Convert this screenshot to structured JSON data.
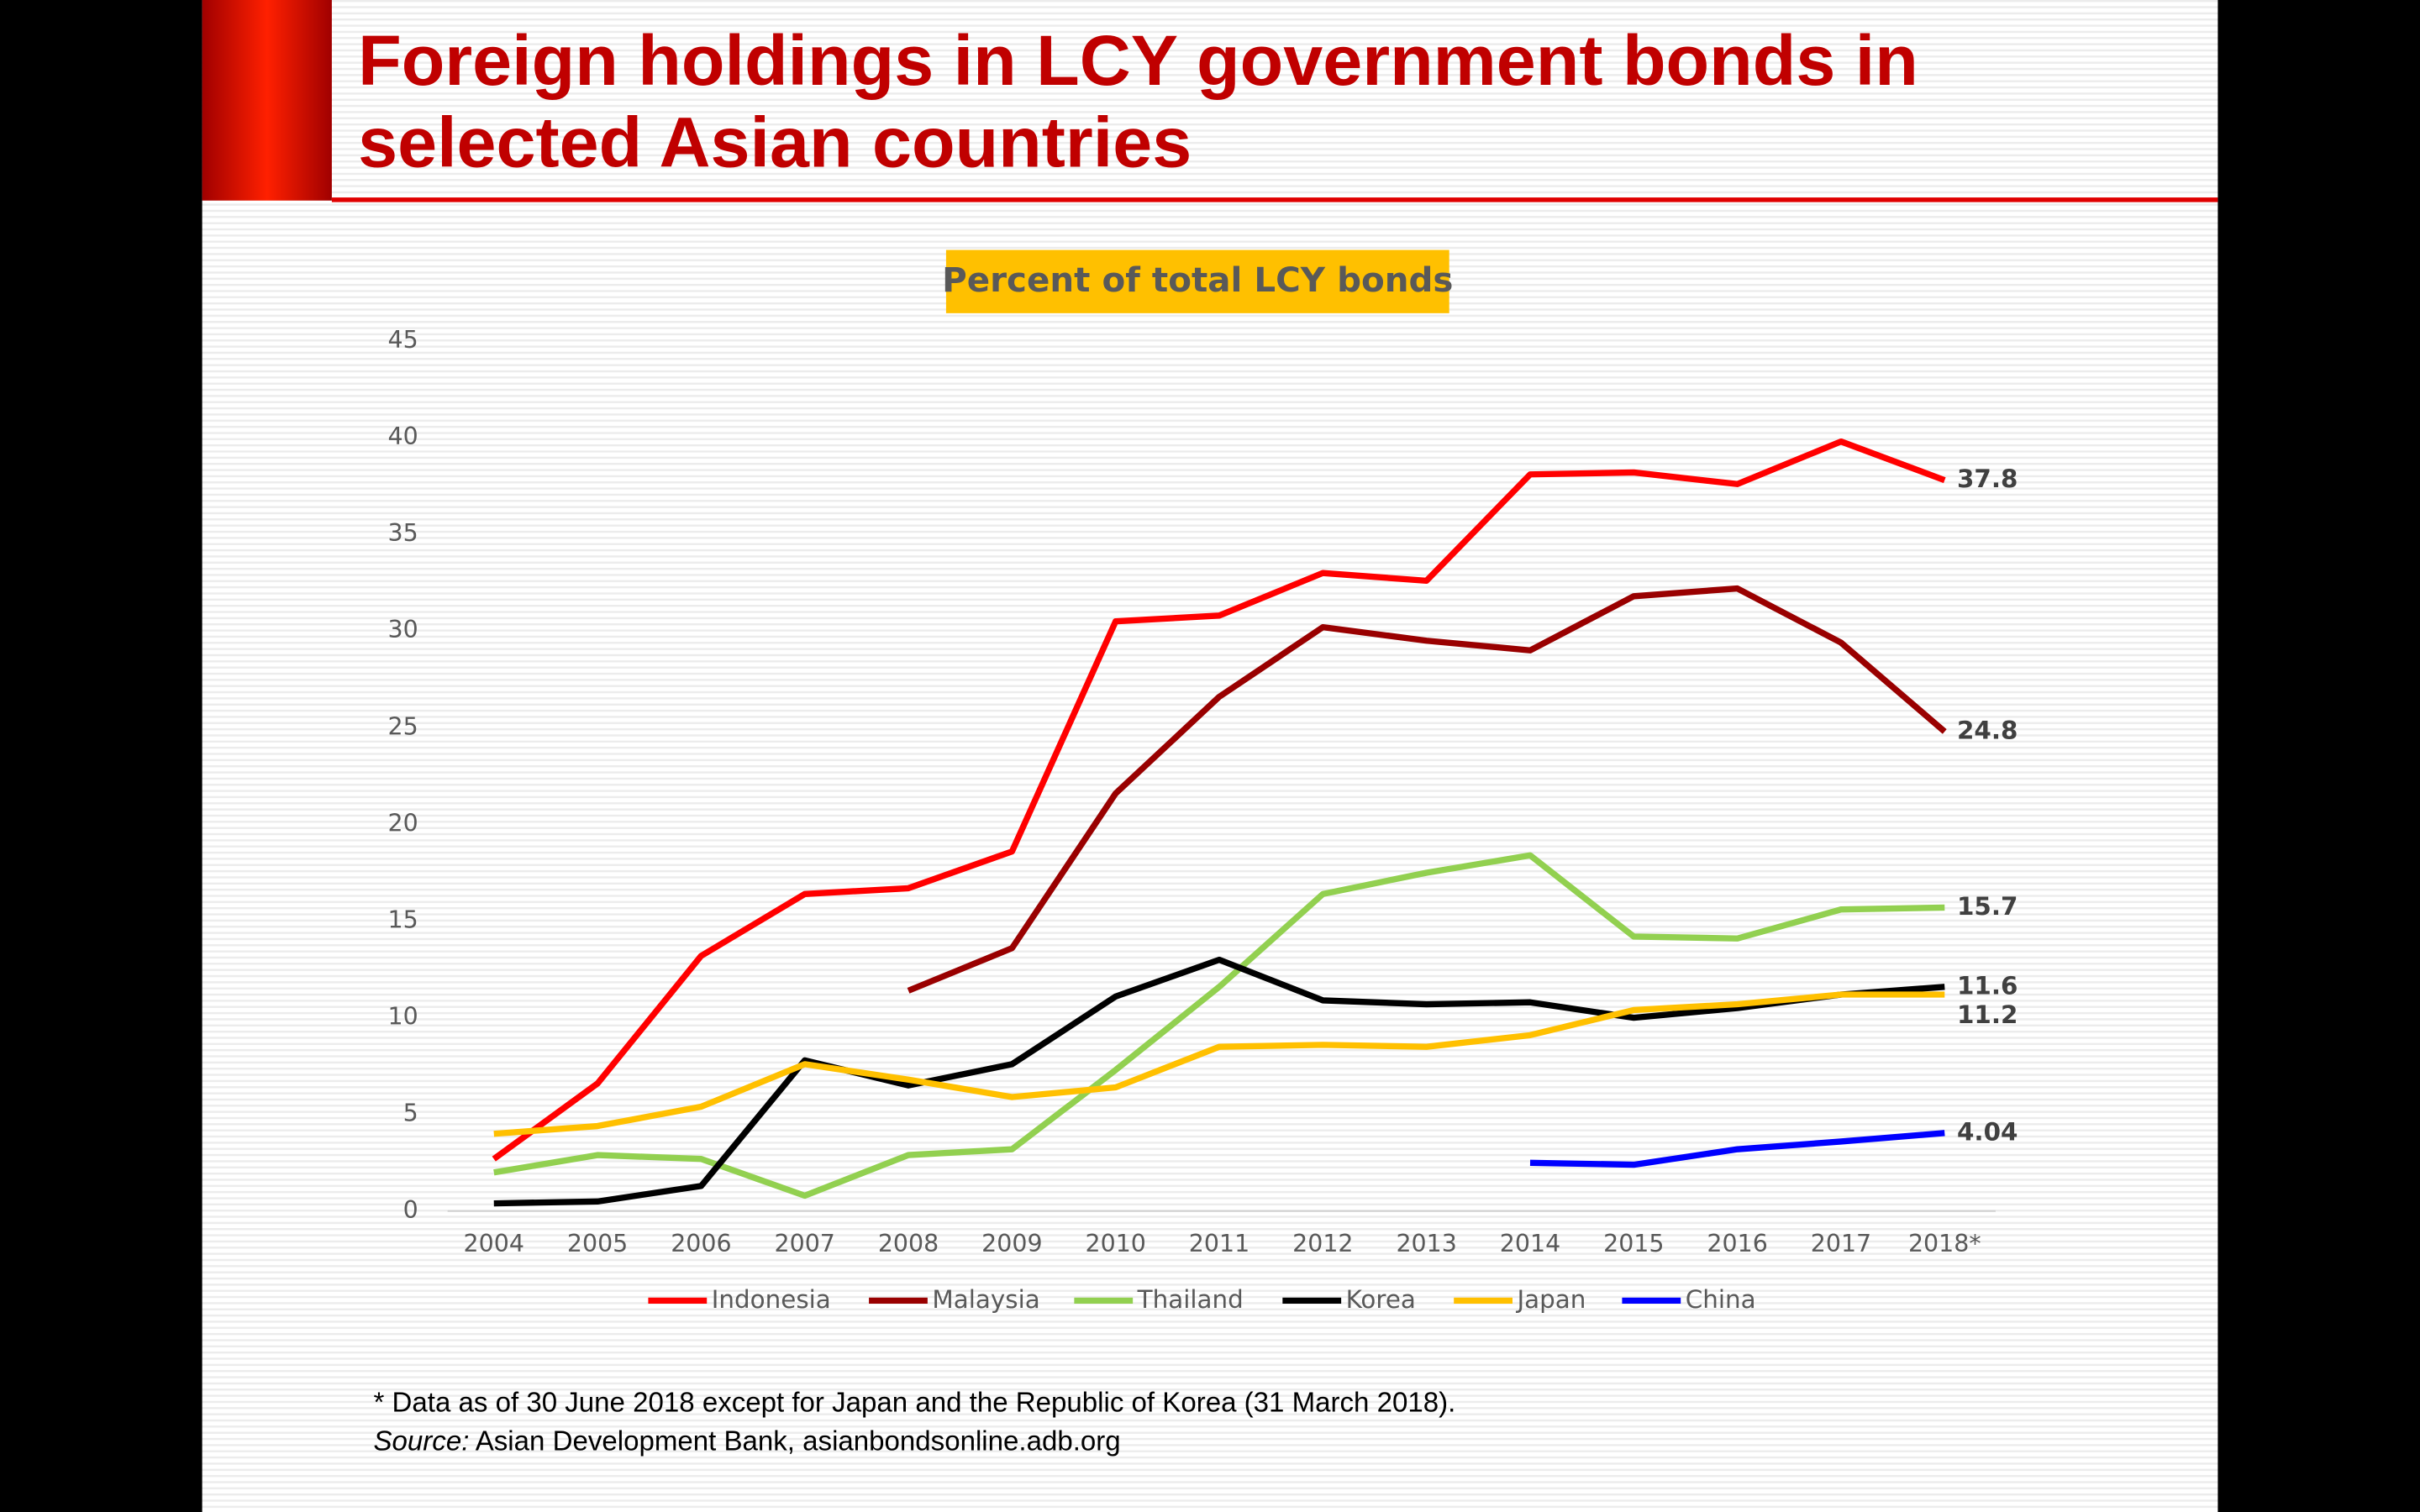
{
  "chart_data": {
    "type": "line",
    "title_lines": [
      "Foreign holdings in LCY government bonds in",
      "selected Asian countries"
    ],
    "subtitle": "Percent of total LCY bonds",
    "categories": [
      "2004",
      "2005",
      "2006",
      "2007",
      "2008",
      "2009",
      "2010",
      "2011",
      "2012",
      "2013",
      "2014",
      "2015",
      "2016",
      "2017",
      "2018*"
    ],
    "ylim": [
      0,
      45
    ],
    "yticks": [
      0,
      5,
      10,
      15,
      20,
      25,
      30,
      35,
      40,
      45
    ],
    "grid": false,
    "legend": "bottom",
    "series": [
      {
        "name": "Indonesia",
        "color": "#ff0000",
        "values": [
          2.7,
          6.6,
          13.2,
          16.4,
          16.7,
          18.6,
          30.5,
          30.8,
          33.0,
          32.6,
          38.1,
          38.2,
          37.6,
          39.8,
          37.8
        ]
      },
      {
        "name": "Malaysia",
        "color": "#990000",
        "values": [
          null,
          null,
          null,
          null,
          11.4,
          13.6,
          21.6,
          26.6,
          30.2,
          29.5,
          29.0,
          31.8,
          32.2,
          29.4,
          24.8
        ]
      },
      {
        "name": "Thailand",
        "color": "#92d050",
        "values": [
          2.0,
          2.9,
          2.7,
          0.8,
          2.9,
          3.2,
          7.3,
          11.6,
          16.4,
          17.5,
          18.4,
          14.2,
          14.1,
          15.6,
          15.7
        ]
      },
      {
        "name": "Korea",
        "color": "#000000",
        "values": [
          0.4,
          0.5,
          1.3,
          7.8,
          6.5,
          7.6,
          11.1,
          13.0,
          10.9,
          10.7,
          10.8,
          10.0,
          10.5,
          11.2,
          11.6
        ]
      },
      {
        "name": "Japan",
        "color": "#ffc000",
        "values": [
          4.0,
          4.4,
          5.4,
          7.6,
          6.8,
          5.9,
          6.4,
          8.5,
          8.6,
          8.5,
          9.1,
          10.4,
          10.7,
          11.2,
          11.2
        ]
      },
      {
        "name": "China",
        "color": "#0000ff",
        "values": [
          null,
          null,
          null,
          null,
          null,
          null,
          null,
          null,
          null,
          null,
          2.5,
          2.4,
          3.2,
          3.6,
          4.04
        ]
      }
    ],
    "footnote": "* Data as of 30 June 2018 except for Japan and the Republic of Korea (31 March 2018).",
    "source_label": "Source:",
    "source_text": " Asian Development Bank, asianbondsonline.adb.org"
  }
}
